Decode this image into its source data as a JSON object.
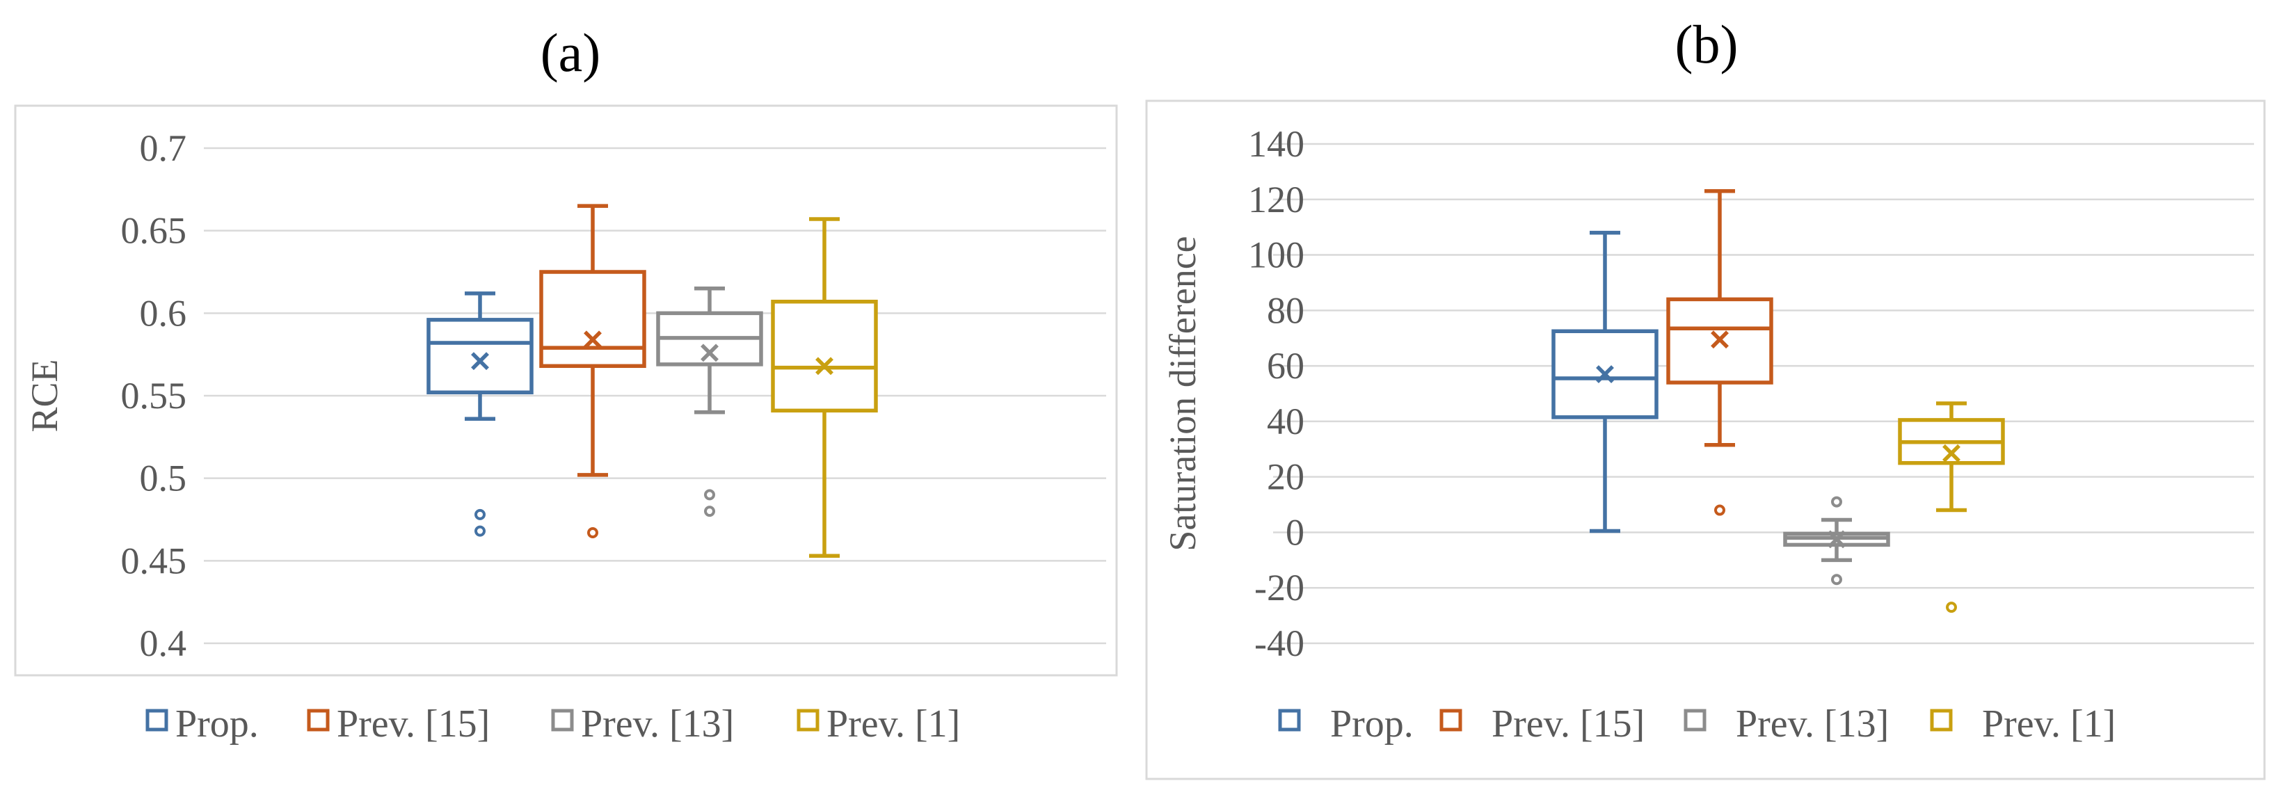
{
  "chart_data": [
    {
      "type": "box",
      "title": "(a)",
      "ylabel": "RCE",
      "ylim": [
        0.4,
        0.7
      ],
      "yticks": [
        "0.4",
        "0.45",
        "0.5",
        "0.55",
        "0.6",
        "0.65",
        "0.7"
      ],
      "grid": true,
      "legend_position": "bottom",
      "series": [
        {
          "name": "Prop.",
          "color": "#4472a4",
          "whisker_low": 0.536,
          "q1": 0.552,
          "median": 0.582,
          "q3": 0.596,
          "whisker_high": 0.612,
          "mean": 0.571,
          "outliers": [
            0.478,
            0.468
          ]
        },
        {
          "name": "Prev. [15]",
          "color": "#c55a1c",
          "whisker_low": 0.502,
          "q1": 0.568,
          "median": 0.579,
          "q3": 0.625,
          "whisker_high": 0.665,
          "mean": 0.584,
          "outliers": [
            0.467
          ]
        },
        {
          "name": "Prev. [13]",
          "color": "#8c8c8c",
          "whisker_low": 0.54,
          "q1": 0.569,
          "median": 0.585,
          "q3": 0.6,
          "whisker_high": 0.615,
          "mean": 0.576,
          "outliers": [
            0.49,
            0.48
          ]
        },
        {
          "name": "Prev. [1]",
          "color": "#c9a010",
          "whisker_low": 0.453,
          "q1": 0.541,
          "median": 0.567,
          "q3": 0.607,
          "whisker_high": 0.657,
          "mean": 0.568,
          "outliers": []
        }
      ]
    },
    {
      "type": "box",
      "title": "(b)",
      "ylabel": "Saturation difference",
      "ylim": [
        -40,
        140
      ],
      "yticks": [
        "-40",
        "-20",
        "0",
        "20",
        "40",
        "60",
        "80",
        "100",
        "120",
        "140"
      ],
      "grid": true,
      "legend_position": "bottom",
      "series": [
        {
          "name": "Prop.",
          "color": "#4472a4",
          "whisker_low": 0.5,
          "q1": 41.5,
          "median": 55.5,
          "q3": 72.5,
          "whisker_high": 108,
          "mean": 57,
          "outliers": []
        },
        {
          "name": "Prev. [15]",
          "color": "#c55a1c",
          "whisker_low": 31.5,
          "q1": 54,
          "median": 73.5,
          "q3": 84,
          "whisker_high": 123,
          "mean": 69.5,
          "outliers": [
            8
          ]
        },
        {
          "name": "Prev. [13]",
          "color": "#8c8c8c",
          "whisker_low": -10,
          "q1": -4.5,
          "median": -2,
          "q3": -0.5,
          "whisker_high": 4.5,
          "mean": -2.5,
          "outliers": [
            11,
            -17
          ]
        },
        {
          "name": "Prev. [1]",
          "color": "#c9a010",
          "whisker_low": 8,
          "q1": 25,
          "median": 32.5,
          "q3": 40.5,
          "whisker_high": 46.5,
          "mean": 28.5,
          "outliers": [
            -27
          ]
        }
      ]
    }
  ]
}
